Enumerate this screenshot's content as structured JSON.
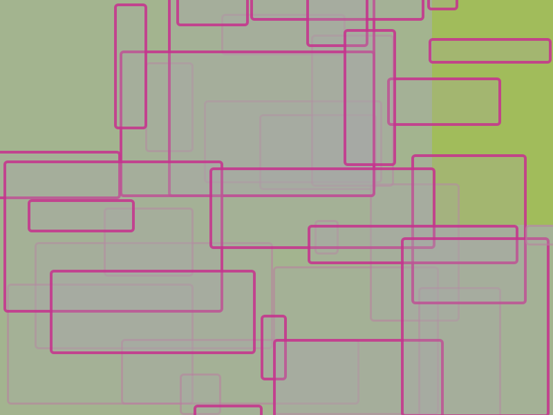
{
  "colors": {
    "background": "#a1bc5b",
    "wash": "#a3b48f",
    "rect_fill": "rgba(168,170,168,0.28)",
    "border_strong": "rgba(198,48,140,0.85)",
    "border_faint": "rgba(190,120,160,0.45)"
  }
}
